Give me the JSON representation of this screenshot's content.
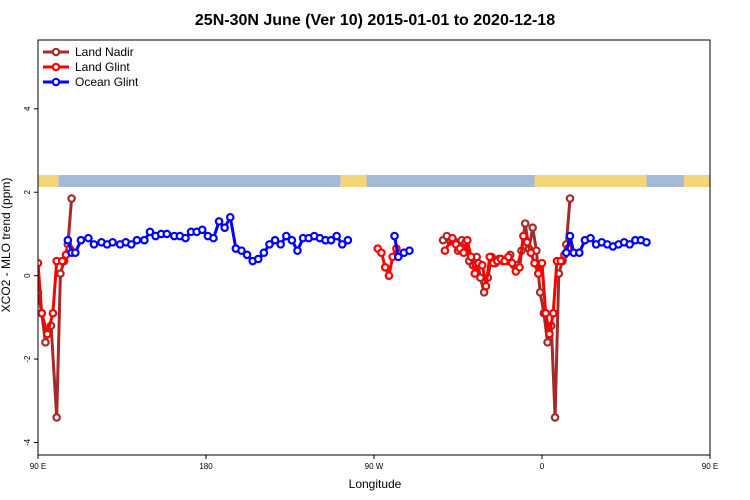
{
  "chart_data": {
    "type": "line",
    "title": "25N-30N June (Ver 10)   2015-01-01 to 2020-12-18",
    "xlabel": "Longitude",
    "ylabel": "XCO2 - MLO trend (ppm)",
    "xlim": [
      90,
      450
    ],
    "ylim": [
      -4.3,
      5.65
    ],
    "x_ticks": [
      {
        "value": 90,
        "label": "90 E"
      },
      {
        "value": 180,
        "label": "180"
      },
      {
        "value": 270,
        "label": "90 W"
      },
      {
        "value": 360,
        "label": "0"
      },
      {
        "value": 450,
        "label": "90 E"
      },
      {
        "value": 540,
        "label": "180"
      }
    ],
    "y_ticks": [
      {
        "value": -4,
        "label": "-4"
      },
      {
        "value": -2,
        "label": "-2"
      },
      {
        "value": 0,
        "label": "0"
      },
      {
        "value": 2,
        "label": "2"
      },
      {
        "value": 4,
        "label": "4"
      }
    ],
    "grid": false,
    "legend_position": "top-left",
    "land_strip": {
      "ocean_color": "#a3bbd8",
      "land_color": "#f4d57a",
      "land_ranges": [
        [
          90,
          101
        ],
        [
          252,
          266
        ],
        [
          356,
          416
        ],
        [
          436,
          461
        ],
        [
          542,
          556
        ]
      ]
    },
    "series": [
      {
        "name": "Land Nadir",
        "color": "#a52a2a",
        "segments": [
          [
            [
              81,
              1.25
            ],
            [
              84,
              1.15
            ],
            [
              86,
              0.3
            ],
            [
              88,
              0.05
            ],
            [
              90,
              -0.4
            ],
            [
              92,
              -0.9
            ],
            [
              94,
              -1.6
            ],
            [
              97,
              -1.2
            ],
            [
              100,
              -3.4
            ],
            [
              102,
              0.05
            ],
            [
              104,
              0.35
            ],
            [
              106,
              0.75
            ],
            [
              108,
              1.85
            ]
          ],
          [
            [
              307,
              0.85
            ],
            [
              309,
              0.95
            ],
            [
              311,
              0.82
            ],
            [
              313,
              0.82
            ],
            [
              315,
              0.6
            ],
            [
              317,
              0.85
            ],
            [
              319,
              0.8
            ],
            [
              321,
              0.35
            ],
            [
              323,
              0.25
            ],
            [
              325,
              0.45
            ],
            [
              327,
              -0.05
            ],
            [
              329,
              -0.4
            ],
            [
              331,
              -0.05
            ],
            [
              333,
              0.45
            ],
            [
              335,
              0.3
            ],
            [
              337,
              0.4
            ],
            [
              339,
              0.35
            ],
            [
              341,
              0.35
            ],
            [
              343,
              0.5
            ],
            [
              345,
              0.25
            ],
            [
              347,
              0.25
            ],
            [
              349,
              0.6
            ],
            [
              351,
              1.25
            ],
            [
              353,
              0.65
            ],
            [
              355,
              1.15
            ],
            [
              357,
              0.6
            ],
            [
              359,
              -0.4
            ],
            [
              361,
              -0.9
            ],
            [
              363,
              -1.6
            ],
            [
              365,
              -1.2
            ],
            [
              367,
              -3.4
            ],
            [
              369,
              0.05
            ],
            [
              371,
              0.35
            ],
            [
              373,
              0.75
            ],
            [
              375,
              1.85
            ]
          ]
        ]
      },
      {
        "name": "Land Glint",
        "color": "#ff0000",
        "segments": [
          [
            [
              86,
              0.55
            ],
            [
              90,
              0.3
            ],
            [
              92,
              -0.9
            ],
            [
              95,
              -1.4
            ],
            [
              98,
              -0.9
            ],
            [
              100,
              0.35
            ],
            [
              103,
              0.35
            ],
            [
              105,
              0.5
            ],
            [
              107,
              0.65
            ]
          ],
          [
            [
              272,
              0.65
            ],
            [
              274,
              0.55
            ],
            [
              276,
              0.2
            ],
            [
              278,
              0.0
            ],
            [
              280,
              0.45
            ],
            [
              282,
              0.65
            ]
          ],
          [
            [
              308,
              0.6
            ],
            [
              312,
              0.9
            ],
            [
              314,
              0.75
            ],
            [
              316,
              0.65
            ],
            [
              318,
              0.55
            ],
            [
              320,
              0.85
            ],
            [
              322,
              0.45
            ],
            [
              324,
              0.05
            ],
            [
              326,
              0.3
            ],
            [
              328,
              0.25
            ],
            [
              330,
              -0.25
            ],
            [
              332,
              0.45
            ],
            [
              334,
              0.3
            ],
            [
              336,
              0.35
            ],
            [
              338,
              0.4
            ],
            [
              340,
              0.35
            ],
            [
              342,
              0.45
            ],
            [
              344,
              0.3
            ],
            [
              346,
              0.1
            ],
            [
              348,
              0.2
            ],
            [
              350,
              0.95
            ],
            [
              352,
              0.8
            ],
            [
              354,
              0.55
            ],
            [
              356,
              0.3
            ],
            [
              358,
              0.05
            ],
            [
              360,
              0.3
            ],
            [
              362,
              -0.9
            ],
            [
              364,
              -1.4
            ],
            [
              366,
              -0.9
            ],
            [
              368,
              0.35
            ],
            [
              370,
              0.35
            ],
            [
              372,
              0.5
            ],
            [
              374,
              0.65
            ]
          ]
        ]
      },
      {
        "name": "Ocean Glint",
        "color": "#0000ff",
        "segments": [
          [
            [
              106,
              0.85
            ],
            [
              108,
              0.55
            ],
            [
              110,
              0.55
            ],
            [
              113,
              0.85
            ],
            [
              117,
              0.9
            ],
            [
              120,
              0.75
            ],
            [
              124,
              0.8
            ],
            [
              127,
              0.75
            ],
            [
              130,
              0.8
            ],
            [
              134,
              0.75
            ],
            [
              137,
              0.8
            ],
            [
              140,
              0.75
            ],
            [
              143,
              0.85
            ],
            [
              147,
              0.85
            ],
            [
              150,
              1.05
            ],
            [
              153,
              0.95
            ],
            [
              156,
              1.0
            ],
            [
              159,
              1.0
            ],
            [
              163,
              0.95
            ],
            [
              166,
              0.95
            ],
            [
              169,
              0.9
            ],
            [
              172,
              1.05
            ],
            [
              175,
              1.05
            ],
            [
              178,
              1.1
            ],
            [
              181,
              0.95
            ],
            [
              184,
              0.9
            ],
            [
              187,
              1.3
            ],
            [
              190,
              1.15
            ],
            [
              193,
              1.4
            ],
            [
              196,
              0.65
            ],
            [
              199,
              0.6
            ],
            [
              202,
              0.5
            ],
            [
              205,
              0.35
            ],
            [
              208,
              0.4
            ],
            [
              211,
              0.55
            ],
            [
              214,
              0.75
            ],
            [
              217,
              0.85
            ],
            [
              220,
              0.75
            ],
            [
              223,
              0.95
            ],
            [
              226,
              0.85
            ],
            [
              229,
              0.6
            ],
            [
              232,
              0.9
            ],
            [
              235,
              0.9
            ],
            [
              238,
              0.95
            ],
            [
              241,
              0.9
            ],
            [
              244,
              0.85
            ],
            [
              247,
              0.85
            ],
            [
              250,
              0.95
            ],
            [
              253,
              0.75
            ],
            [
              256,
              0.85
            ]
          ],
          [
            [
              281,
              0.95
            ],
            [
              283,
              0.45
            ]
          ],
          [
            [
              286,
              0.55
            ],
            [
              289,
              0.6
            ]
          ],
          [
            [
              373,
              0.55
            ],
            [
              375,
              0.95
            ],
            [
              377,
              0.55
            ],
            [
              380,
              0.55
            ],
            [
              383,
              0.85
            ],
            [
              386,
              0.9
            ],
            [
              389,
              0.75
            ],
            [
              392,
              0.8
            ],
            [
              395,
              0.75
            ],
            [
              398,
              0.7
            ],
            [
              401,
              0.75
            ],
            [
              404,
              0.8
            ],
            [
              407,
              0.75
            ],
            [
              410,
              0.85
            ],
            [
              413,
              0.85
            ],
            [
              416,
              0.8
            ]
          ]
        ]
      }
    ]
  }
}
